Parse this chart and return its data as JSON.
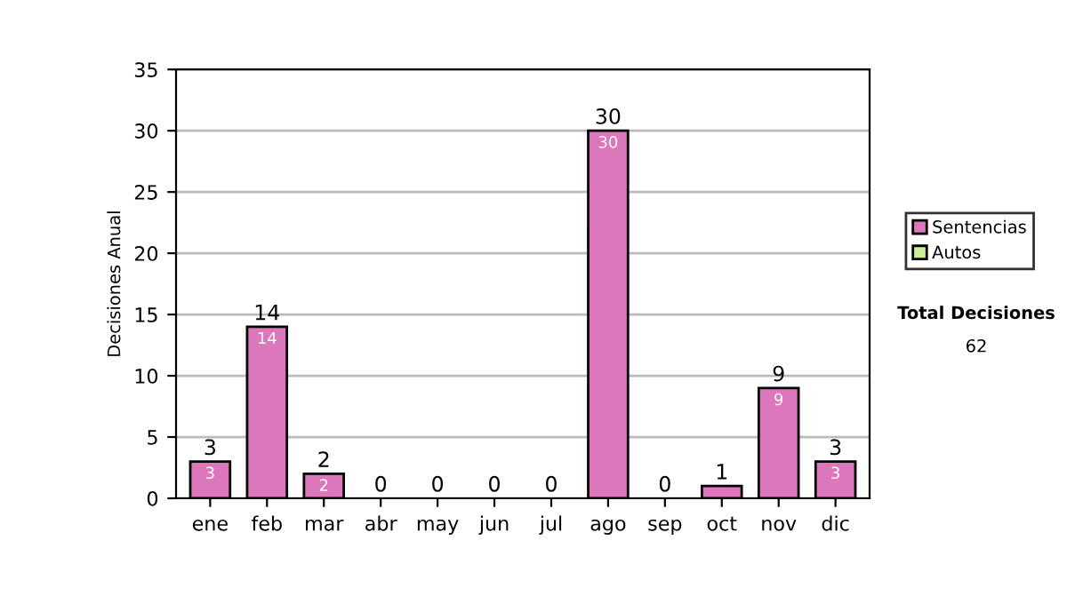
{
  "chart_data": {
    "type": "bar",
    "stacked": true,
    "ylabel": "Decisiones Anual",
    "categories": [
      "ene",
      "feb",
      "mar",
      "abr",
      "may",
      "jun",
      "jul",
      "ago",
      "sep",
      "oct",
      "nov",
      "dic"
    ],
    "series": [
      {
        "name": "Sentencias",
        "color": "#dd77bb",
        "values": [
          3,
          14,
          2,
          0,
          0,
          0,
          0,
          30,
          0,
          1,
          9,
          3
        ],
        "value_labels": [
          "3",
          "14",
          "2",
          null,
          null,
          null,
          null,
          "30",
          null,
          null,
          "9",
          "3"
        ]
      },
      {
        "name": "Autos",
        "color": "#ccee99",
        "values": [
          0,
          0,
          0,
          0,
          0,
          0,
          0,
          0,
          0,
          0,
          0,
          0
        ]
      }
    ],
    "totals": [
      "3",
      "14",
      "2",
      "0",
      "0",
      "0",
      "0",
      "30",
      "0",
      "1",
      "9",
      "3"
    ],
    "ylim": [
      0,
      35
    ],
    "yticks": [
      0,
      5,
      10,
      15,
      20,
      25,
      30,
      35
    ],
    "grid": "y",
    "legend": "right",
    "annotations": [
      "Total Decisiones",
      "62"
    ]
  }
}
